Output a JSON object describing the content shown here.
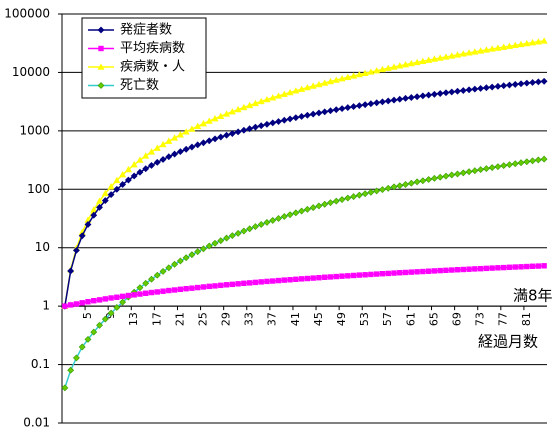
{
  "chart_data": {
    "type": "line",
    "log_scale": true,
    "grid": true,
    "legend": "upper left",
    "x_label": "経過月数",
    "annotations": [
      "満8年"
    ],
    "categories": [
      null,
      null,
      null,
      null,
      5,
      null,
      null,
      null,
      9,
      null,
      null,
      null,
      13,
      null,
      null,
      null,
      17,
      null,
      null,
      null,
      21,
      null,
      null,
      null,
      25,
      null,
      null,
      null,
      29,
      null,
      null,
      null,
      33,
      null,
      null,
      null,
      37,
      null,
      null,
      null,
      41,
      null,
      null,
      null,
      45,
      null,
      null,
      null,
      49,
      null,
      null,
      null,
      53,
      null,
      null,
      null,
      57,
      null,
      null,
      null,
      61,
      null,
      null,
      null,
      65,
      null,
      null,
      null,
      69,
      null,
      null,
      null,
      73,
      null,
      null,
      null,
      77,
      null,
      null,
      null,
      81,
      null,
      null,
      null
    ],
    "ylim": [
      0.01,
      100000
    ],
    "yticks": [
      0.01,
      0.1,
      1,
      10,
      100,
      1000,
      10000,
      100000
    ],
    "series": [
      {
        "name": "発症者数",
        "color": "#000080",
        "marker": "diamond",
        "marker_color": "#000080",
        "values": [
          1,
          4,
          9,
          16,
          25,
          36,
          49,
          64,
          81,
          100,
          121,
          144,
          169,
          196,
          225,
          256,
          289,
          324,
          361,
          400,
          441,
          484,
          529,
          576,
          625,
          676,
          729,
          784,
          841,
          900,
          961,
          1024,
          1089,
          1156,
          1225,
          1296,
          1369,
          1444,
          1521,
          1600,
          1681,
          1764,
          1849,
          1936,
          2025,
          2116,
          2209,
          2304,
          2401,
          2500,
          2601,
          2704,
          2809,
          2916,
          3025,
          3136,
          3249,
          3364,
          3481,
          3600,
          3721,
          3844,
          3969,
          4096,
          4225,
          4356,
          4489,
          4624,
          4761,
          4900,
          5041,
          5184,
          5329,
          5476,
          5625,
          5776,
          5929,
          6084,
          6241,
          6400,
          6561,
          6724,
          6889,
          7056
        ]
      },
      {
        "name": "平均疾病数",
        "color": "#ff00ff",
        "marker": "square",
        "marker_color": "#ff00ff",
        "values": [
          1.0,
          1.05,
          1.09,
          1.14,
          1.19,
          1.24,
          1.28,
          1.33,
          1.38,
          1.42,
          1.47,
          1.52,
          1.56,
          1.61,
          1.66,
          1.71,
          1.75,
          1.8,
          1.85,
          1.89,
          1.94,
          1.99,
          2.03,
          2.08,
          2.13,
          2.18,
          2.22,
          2.27,
          2.32,
          2.36,
          2.41,
          2.46,
          2.5,
          2.55,
          2.6,
          2.65,
          2.69,
          2.74,
          2.79,
          2.83,
          2.88,
          2.93,
          2.97,
          3.02,
          3.07,
          3.12,
          3.16,
          3.21,
          3.26,
          3.3,
          3.35,
          3.4,
          3.44,
          3.49,
          3.54,
          3.59,
          3.63,
          3.68,
          3.73,
          3.77,
          3.82,
          3.87,
          3.91,
          3.96,
          4.01,
          4.06,
          4.1,
          4.15,
          4.2,
          4.24,
          4.29,
          4.34,
          4.38,
          4.43,
          4.48,
          4.53,
          4.57,
          4.62,
          4.67,
          4.71,
          4.76,
          4.81,
          4.85,
          4.9
        ]
      },
      {
        "name": "疾病数・人",
        "color": "#ffff00",
        "marker": "triangle",
        "marker_color": "#ffff00",
        "values": [
          1,
          4.2,
          9.8,
          18.3,
          29.7,
          44.5,
          62.8,
          85.1,
          111,
          142,
          178,
          218,
          264,
          316,
          373,
          436,
          506,
          583,
          666,
          757,
          856,
          962,
          1076,
          1199,
          1330,
          1470,
          1620,
          1779,
          1948,
          2127,
          2316,
          2516,
          2727,
          2949,
          3183,
          3428,
          3685,
          3955,
          4238,
          4533,
          4841,
          5163,
          5499,
          5849,
          6213,
          6591,
          6985,
          7394,
          7818,
          8258,
          8713,
          9185,
          9674,
          10180,
          10702,
          11243,
          11800,
          12376,
          12970,
          13583,
          14214,
          14865,
          15535,
          16224,
          16934,
          17664,
          18414,
          19185,
          19977,
          20791,
          21626,
          22483,
          23362,
          24264,
          25189,
          26136,
          27107,
          28102,
          29120,
          30163,
          31230,
          32322,
          33439,
          34581
        ]
      },
      {
        "name": "死亡数",
        "color": "#33cccc",
        "marker": "diamond",
        "marker_color": "#66cc00",
        "values": [
          0.04,
          0.08,
          0.13,
          0.2,
          0.27,
          0.36,
          0.47,
          0.6,
          0.76,
          0.95,
          1.17,
          1.43,
          1.73,
          2.07,
          2.46,
          2.89,
          3.38,
          3.93,
          4.53,
          5.2,
          5.93,
          6.74,
          7.61,
          8.56,
          9.59,
          10.7,
          11.9,
          13.2,
          14.6,
          16.1,
          17.6,
          19.3,
          21.1,
          23.0,
          25.0,
          27.1,
          29.3,
          31.7,
          34.2,
          36.8,
          39.5,
          42.4,
          45.4,
          48.6,
          51.9,
          55.4,
          59.0,
          62.7,
          66.7,
          70.8,
          75.0,
          79.4,
          84.0,
          88.8,
          93.7,
          98.8,
          104,
          110,
          115,
          121,
          127,
          134,
          140,
          147,
          154,
          161,
          168,
          176,
          183,
          191,
          200,
          208,
          217,
          226,
          235,
          244,
          254,
          264,
          274,
          285,
          296,
          307,
          318,
          329
        ]
      }
    ]
  }
}
